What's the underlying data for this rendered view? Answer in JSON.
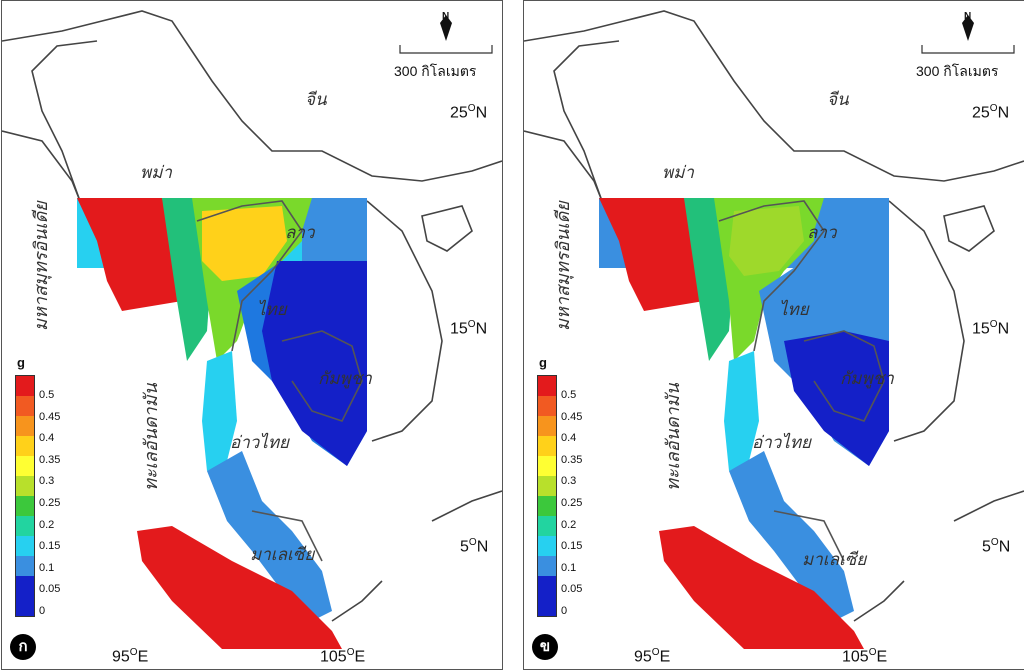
{
  "panels": [
    {
      "id": "a",
      "badge": "ก",
      "colors": {
        "nw": "#e31a1c",
        "west": "#ffd11a",
        "center": "#7ad92b",
        "lao": "#ffd11a",
        "thai_c": "#1e78e0",
        "thai_e": "#1420c8",
        "cambodia": "#1420c8",
        "south": "#3a8fe0",
        "sumatra": "#e31a1c",
        "coast": "#22c07a"
      }
    },
    {
      "id": "b",
      "badge": "ข",
      "colors": {
        "nw": "#e31a1c",
        "west": "#9ed92b",
        "center": "#7ad92b",
        "lao": "#9ed92b",
        "thai_c": "#3a8fe0",
        "thai_e": "#1420c8",
        "cambodia": "#1420c8",
        "south": "#3a8fe0",
        "sumatra": "#e31a1c",
        "coast": "#22c07a"
      }
    }
  ],
  "labels": {
    "china": "จีน",
    "myanmar": "พม่า",
    "laos": "ลาว",
    "thailand": "ไทย",
    "cambodia": "กัมพูชา",
    "gulf": "อ่าวไทย",
    "malaysia": "มาเลเซีย",
    "indian_ocean": "มหาสมุทรอินเดีย",
    "andaman": "ทะเลอันดามัน",
    "scale": "300 กิโลเมตร",
    "north": "N"
  },
  "axes": {
    "lat_25": [
      "25",
      "O",
      "N"
    ],
    "lat_15": [
      "15",
      "O",
      "N"
    ],
    "lat_5": [
      "5",
      "O",
      "N"
    ],
    "lon_95": [
      "95",
      "O",
      "E"
    ],
    "lon_105": [
      "105",
      "O",
      "E"
    ]
  },
  "legend": {
    "title": "g",
    "ticks": [
      "0.5",
      "0.45",
      "0.4",
      "0.35",
      "0.3",
      "0.25",
      "0.2",
      "0.15",
      "0.1",
      "0.05",
      "0"
    ],
    "colors": [
      "#e31a1c",
      "#f15a22",
      "#f7941d",
      "#ffd11a",
      "#ffff33",
      "#b8e02b",
      "#3cc83c",
      "#22d4a0",
      "#27d0f0",
      "#3a8fe0",
      "#1420c8"
    ]
  }
}
